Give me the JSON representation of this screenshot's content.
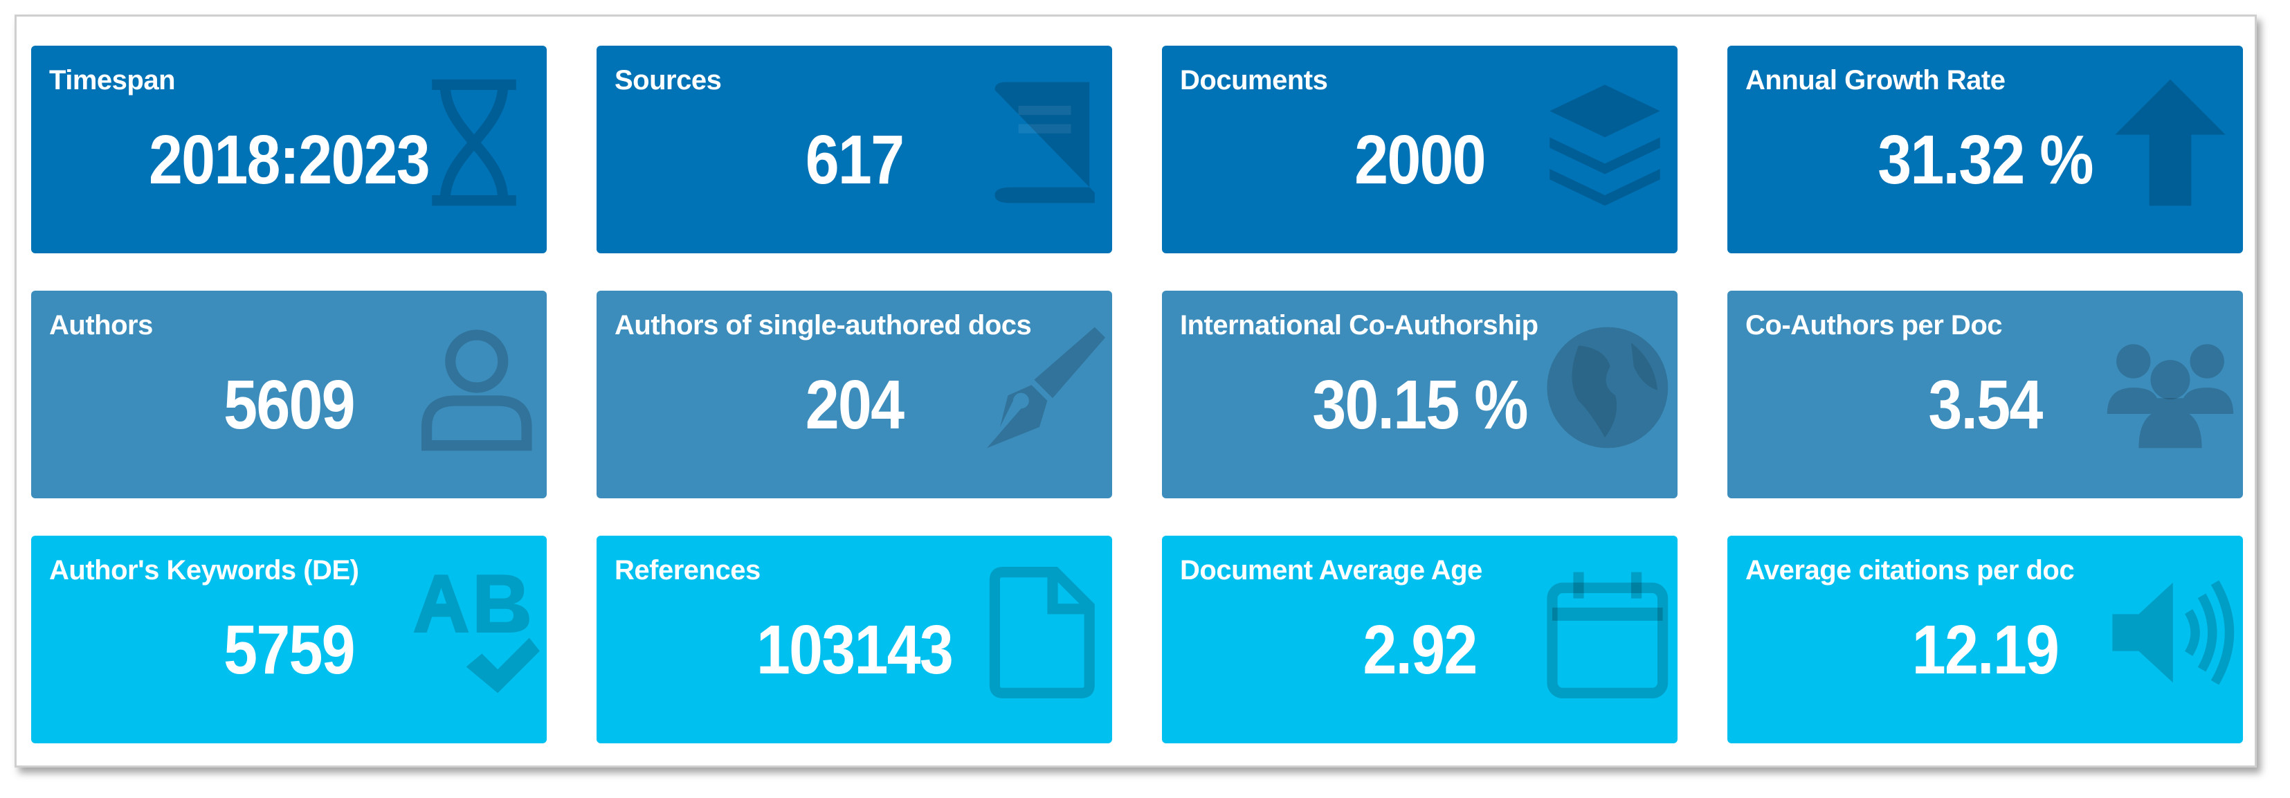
{
  "boxes": [
    {
      "title": "Timespan",
      "value": "2018:2023"
    },
    {
      "title": "Sources",
      "value": "617"
    },
    {
      "title": "Documents",
      "value": "2000"
    },
    {
      "title": "Annual Growth Rate",
      "value": "31.32 %"
    },
    {
      "title": "Authors",
      "value": "5609"
    },
    {
      "title": "Authors of single-authored docs",
      "value": "204"
    },
    {
      "title": "International Co-Authorship",
      "value": "30.15 %"
    },
    {
      "title": "Co-Authors per Doc",
      "value": "3.54"
    },
    {
      "title": "Author's Keywords (DE)",
      "value": "5759"
    },
    {
      "title": "References",
      "value": "103143"
    },
    {
      "title": "Document Average Age",
      "value": "2.92"
    },
    {
      "title": "Average citations per doc",
      "value": "12.19"
    }
  ]
}
